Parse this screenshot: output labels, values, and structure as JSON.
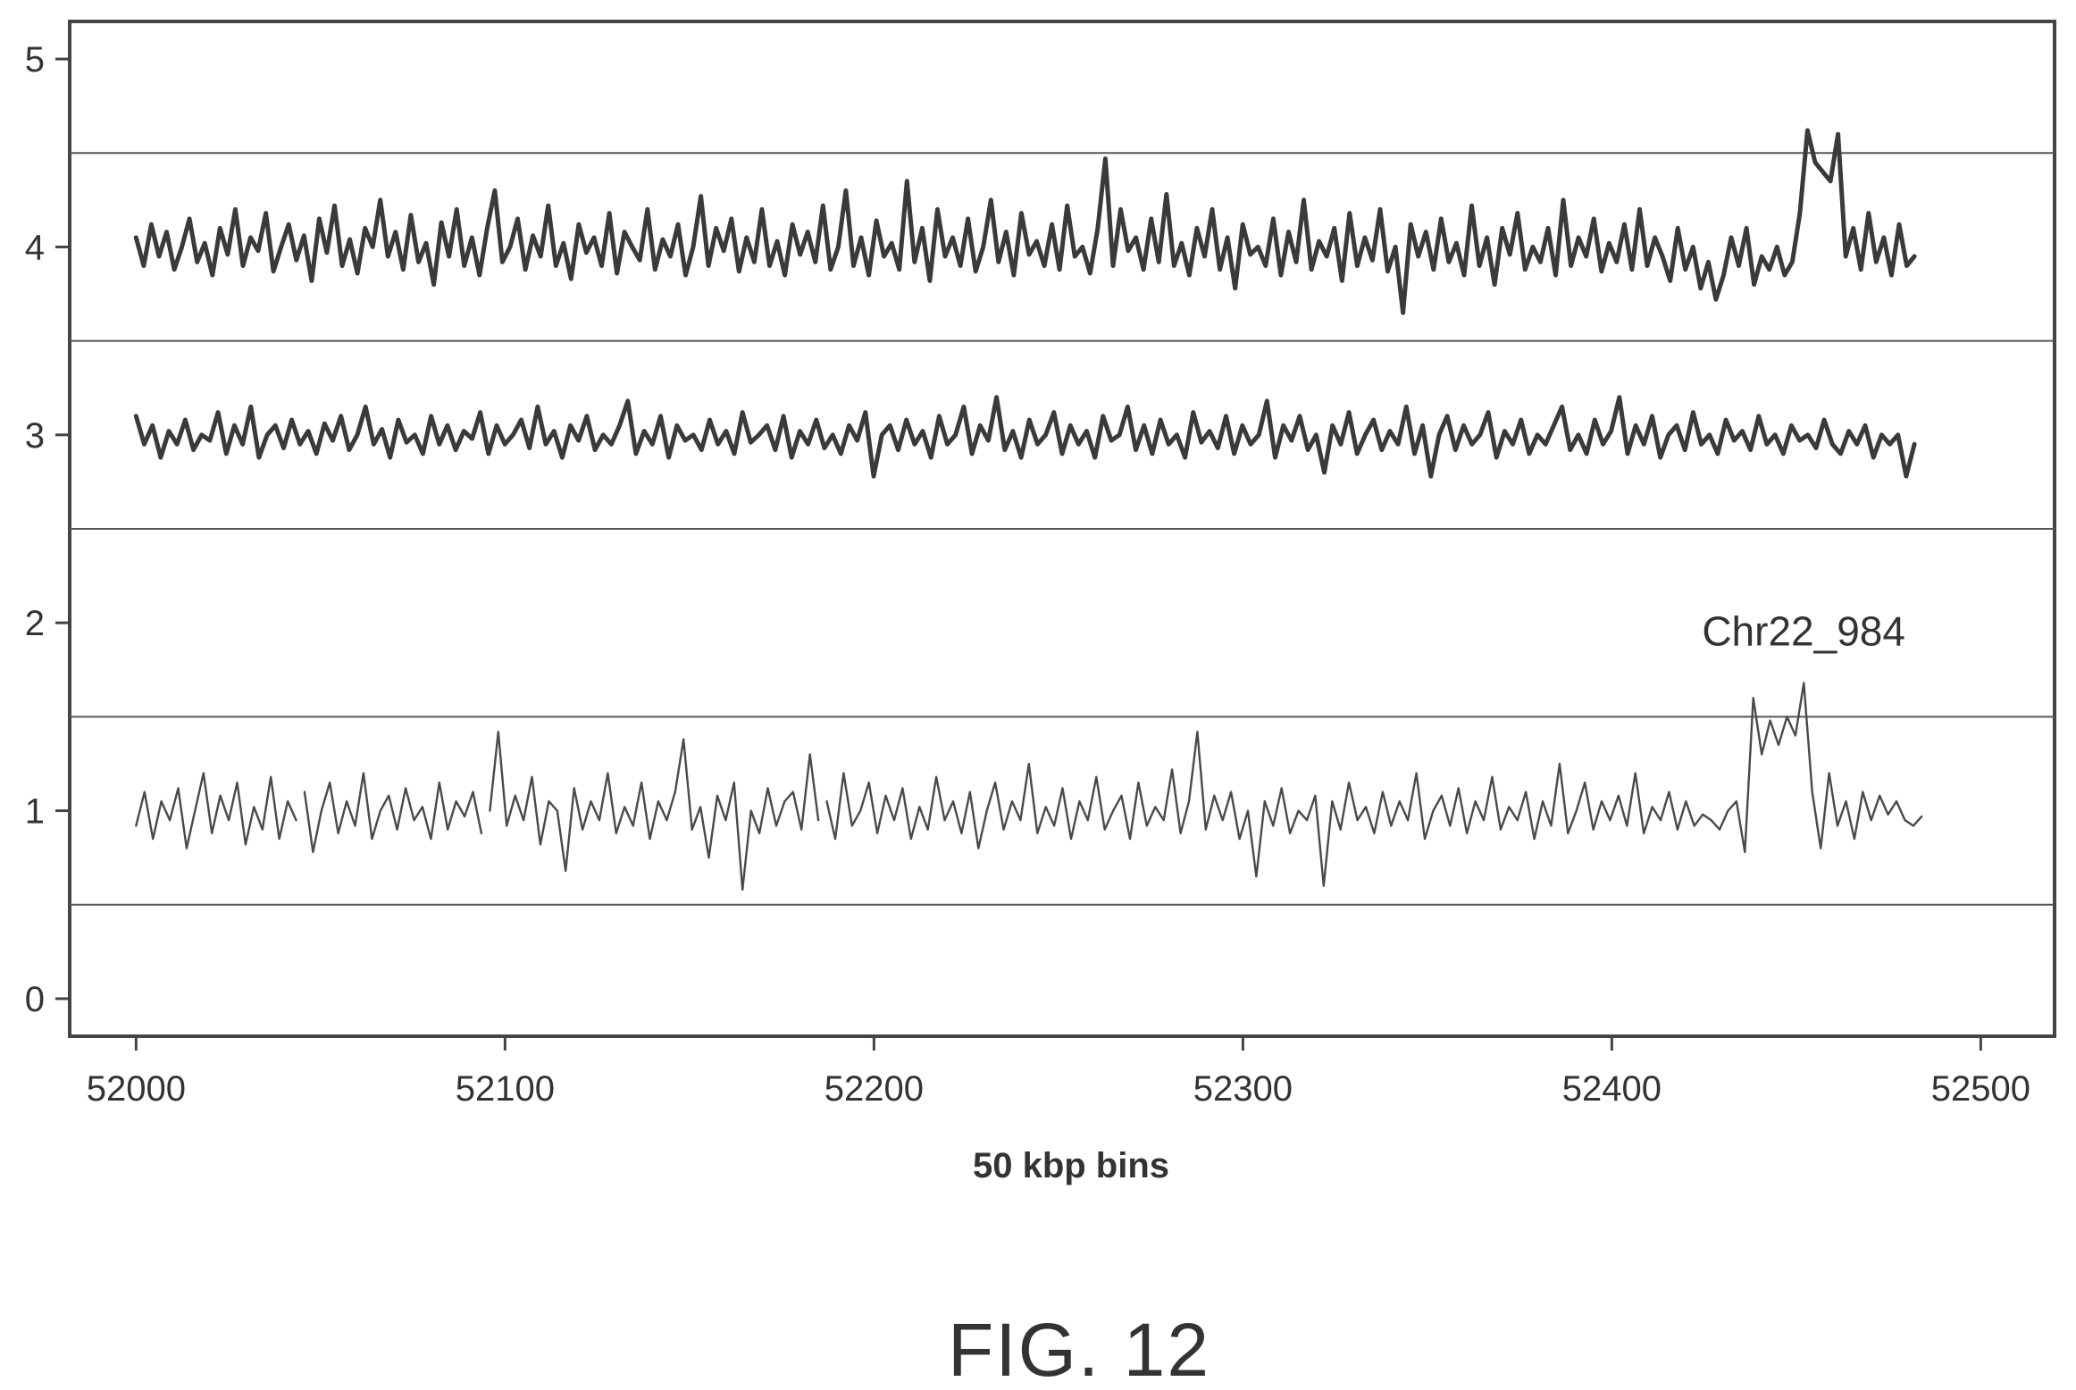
{
  "chart_data": {
    "type": "line",
    "title": "",
    "xlabel": "50 kbp bins",
    "ylabel": "",
    "xlim": [
      51982,
      52520
    ],
    "ylim": [
      -0.2,
      5.2
    ],
    "xticks": [
      52000,
      52100,
      52200,
      52300,
      52400,
      52500
    ],
    "yticks": [
      0,
      1,
      2,
      3,
      4,
      5
    ],
    "reference_lines": [
      0.5,
      1.5,
      2.5,
      3.5,
      4.5
    ],
    "grid": false,
    "legend": "none",
    "annotation": "Chr22_984",
    "series": [
      {
        "x_start": 52000,
        "x_end": 52482,
        "values": [
          4.05,
          3.9,
          4.12,
          3.95,
          4.08,
          3.88,
          4.0,
          4.15,
          3.92,
          4.02,
          3.85,
          4.1,
          3.96,
          4.2,
          3.9,
          4.05,
          3.98,
          4.18,
          3.87,
          4.0,
          4.12,
          3.93,
          4.06,
          3.82,
          4.15,
          3.97,
          4.22,
          3.9,
          4.04,
          3.86,
          4.1,
          4.0,
          4.25,
          3.95,
          4.08,
          3.88,
          4.17,
          3.92,
          4.02,
          3.8,
          4.13,
          3.95,
          4.2,
          3.9,
          4.05,
          3.85,
          4.1,
          4.3,
          3.92,
          4.0,
          4.15,
          3.88,
          4.06,
          3.95,
          4.22,
          3.9,
          4.02,
          3.83,
          4.12,
          3.97,
          4.05,
          3.9,
          4.18,
          3.86,
          4.08,
          4.0,
          3.93,
          4.2,
          3.88,
          4.04,
          3.95,
          4.12,
          3.85,
          4.0,
          4.27,
          3.9,
          4.1,
          3.98,
          4.15,
          3.87,
          4.05,
          3.92,
          4.2,
          3.9,
          4.03,
          3.85,
          4.12,
          3.96,
          4.08,
          3.92,
          4.22,
          3.88,
          4.0,
          4.3,
          3.9,
          4.05,
          3.85,
          4.14,
          3.95,
          4.02,
          3.88,
          4.35,
          3.92,
          4.1,
          3.82,
          4.2,
          3.95,
          4.05,
          3.9,
          4.15,
          3.87,
          4.0,
          4.25,
          3.92,
          4.08,
          3.85,
          4.18,
          3.96,
          4.03,
          3.9,
          4.12,
          3.88,
          4.22,
          3.95,
          4.0,
          3.86,
          4.1,
          4.47,
          3.9,
          4.2,
          3.98,
          4.05,
          3.88,
          4.15,
          3.92,
          4.28,
          3.9,
          4.02,
          3.85,
          4.1,
          3.95,
          4.2,
          3.88,
          4.05,
          3.78,
          4.12,
          3.96,
          4.0,
          3.9,
          4.15,
          3.85,
          4.08,
          3.92,
          4.25,
          3.88,
          4.03,
          3.95,
          4.1,
          3.82,
          4.18,
          3.9,
          4.05,
          3.93,
          4.2,
          3.87,
          4.0,
          3.65,
          4.12,
          3.95,
          4.08,
          3.88,
          4.15,
          3.92,
          4.02,
          3.85,
          4.22,
          3.9,
          4.05,
          3.8,
          4.1,
          3.96,
          4.18,
          3.88,
          4.0,
          3.92,
          4.1,
          3.85,
          4.25,
          3.9,
          4.05,
          3.95,
          4.15,
          3.87,
          4.02,
          3.92,
          4.12,
          3.88,
          4.2,
          3.9,
          4.05,
          3.95,
          3.82,
          4.1,
          3.88,
          4.0,
          3.78,
          3.92,
          3.72,
          3.85,
          4.05,
          3.9,
          4.1,
          3.8,
          3.95,
          3.88,
          4.0,
          3.85,
          3.92,
          4.18,
          4.62,
          4.45,
          4.4,
          4.35,
          4.6,
          3.95,
          4.1,
          3.88,
          4.18,
          3.92,
          4.05,
          3.85,
          4.12,
          3.9,
          3.95
        ],
        "line_weight": "bold"
      },
      {
        "x_start": 52000,
        "x_end": 52482,
        "values": [
          3.1,
          2.95,
          3.05,
          2.88,
          3.02,
          2.95,
          3.08,
          2.92,
          3.0,
          2.97,
          3.12,
          2.9,
          3.05,
          2.95,
          3.15,
          2.88,
          3.0,
          3.05,
          2.93,
          3.08,
          2.95,
          3.02,
          2.9,
          3.06,
          2.97,
          3.1,
          2.92,
          3.0,
          3.15,
          2.95,
          3.03,
          2.88,
          3.08,
          2.96,
          3.0,
          2.9,
          3.1,
          2.95,
          3.05,
          2.92,
          3.02,
          2.98,
          3.12,
          2.9,
          3.05,
          2.95,
          3.0,
          3.08,
          2.93,
          3.15,
          2.95,
          3.02,
          2.88,
          3.05,
          2.97,
          3.1,
          2.92,
          3.0,
          2.95,
          3.05,
          3.18,
          2.9,
          3.02,
          2.95,
          3.1,
          2.88,
          3.05,
          2.97,
          3.0,
          2.92,
          3.08,
          2.95,
          3.02,
          2.9,
          3.12,
          2.96,
          3.0,
          3.05,
          2.92,
          3.1,
          2.88,
          3.02,
          2.95,
          3.08,
          2.93,
          3.0,
          2.9,
          3.05,
          2.97,
          3.12,
          2.78,
          3.0,
          3.05,
          2.92,
          3.08,
          2.95,
          3.02,
          2.88,
          3.1,
          2.95,
          3.0,
          3.15,
          2.9,
          3.05,
          2.97,
          3.2,
          2.92,
          3.02,
          2.88,
          3.08,
          2.95,
          3.0,
          3.12,
          2.9,
          3.05,
          2.95,
          3.02,
          2.88,
          3.1,
          2.97,
          3.0,
          3.15,
          2.92,
          3.05,
          2.9,
          3.08,
          2.95,
          3.0,
          2.88,
          3.12,
          2.96,
          3.02,
          2.93,
          3.1,
          2.9,
          3.05,
          2.95,
          3.0,
          3.18,
          2.88,
          3.05,
          2.97,
          3.1,
          2.92,
          3.0,
          2.8,
          3.05,
          2.95,
          3.12,
          2.9,
          3.0,
          3.08,
          2.92,
          3.02,
          2.95,
          3.15,
          2.9,
          3.05,
          2.78,
          3.0,
          3.1,
          2.92,
          3.05,
          2.95,
          3.0,
          3.12,
          2.88,
          3.02,
          2.95,
          3.08,
          2.9,
          3.0,
          2.95,
          3.05,
          3.15,
          2.92,
          3.0,
          2.9,
          3.08,
          2.95,
          3.02,
          3.2,
          2.9,
          3.05,
          2.95,
          3.1,
          2.88,
          3.0,
          3.05,
          2.92,
          3.12,
          2.95,
          3.0,
          2.9,
          3.08,
          2.97,
          3.02,
          2.92,
          3.1,
          2.95,
          3.0,
          2.9,
          3.05,
          2.97,
          3.0,
          2.93,
          3.08,
          2.95,
          2.9,
          3.02,
          2.95,
          3.05,
          2.88,
          3.0,
          2.95,
          3.0,
          2.78,
          2.95
        ],
        "line_weight": "bold"
      },
      {
        "x_start": 52000,
        "x_end": 52484,
        "values": [
          0.92,
          1.1,
          0.85,
          1.05,
          0.95,
          1.12,
          0.8,
          1.0,
          1.2,
          0.88,
          1.08,
          0.95,
          1.15,
          0.82,
          1.02,
          0.9,
          1.18,
          0.85,
          1.05,
          0.95,
          1.1,
          0.78,
          1.0,
          1.15,
          0.88,
          1.05,
          0.92,
          1.2,
          0.85,
          1.0,
          1.08,
          0.9,
          1.12,
          0.95,
          1.02,
          0.85,
          1.15,
          0.9,
          1.05,
          0.97,
          1.1,
          0.88,
          1.0,
          1.42,
          0.92,
          1.08,
          0.95,
          1.18,
          0.82,
          1.05,
          1.0,
          0.68,
          1.12,
          0.9,
          1.05,
          0.95,
          1.2,
          0.88,
          1.02,
          0.92,
          1.15,
          0.85,
          1.05,
          0.95,
          1.1,
          1.38,
          0.9,
          1.02,
          0.75,
          1.08,
          0.95,
          1.15,
          0.58,
          1.0,
          0.88,
          1.12,
          0.92,
          1.05,
          1.1,
          0.9,
          1.3,
          0.95,
          1.05,
          0.85,
          1.2,
          0.92,
          1.0,
          1.15,
          0.88,
          1.08,
          0.95,
          1.12,
          0.85,
          1.02,
          0.9,
          1.18,
          0.95,
          1.05,
          0.88,
          1.1,
          0.8,
          1.0,
          1.15,
          0.9,
          1.05,
          0.95,
          1.25,
          0.88,
          1.02,
          0.92,
          1.12,
          0.85,
          1.05,
          0.95,
          1.18,
          0.9,
          1.0,
          1.08,
          0.85,
          1.15,
          0.92,
          1.02,
          0.95,
          1.22,
          0.88,
          1.05,
          1.42,
          0.9,
          1.08,
          0.95,
          1.1,
          0.85,
          1.0,
          0.65,
          1.05,
          0.92,
          1.12,
          0.88,
          1.0,
          0.95,
          1.08,
          0.6,
          1.05,
          0.9,
          1.15,
          0.95,
          1.02,
          0.88,
          1.1,
          0.92,
          1.05,
          0.95,
          1.2,
          0.85,
          1.0,
          1.08,
          0.92,
          1.12,
          0.88,
          1.05,
          0.95,
          1.18,
          0.9,
          1.02,
          0.95,
          1.1,
          0.85,
          1.05,
          0.92,
          1.25,
          0.88,
          1.0,
          1.15,
          0.9,
          1.05,
          0.95,
          1.08,
          0.92,
          1.2,
          0.88,
          1.02,
          0.95,
          1.1,
          0.9,
          1.05,
          0.92,
          0.98,
          0.95,
          0.9,
          1.0,
          1.05,
          0.78,
          1.6,
          1.3,
          1.48,
          1.35,
          1.5,
          1.4,
          1.68,
          1.1,
          0.8,
          1.2,
          0.92,
          1.05,
          0.85,
          1.1,
          0.95,
          1.08,
          0.98,
          1.05,
          0.95,
          0.92,
          0.97
        ],
        "gaps_after_x": [
          52045,
          52095,
          52187
        ],
        "line_weight": "thin"
      }
    ]
  },
  "caption": "FIG. 12"
}
